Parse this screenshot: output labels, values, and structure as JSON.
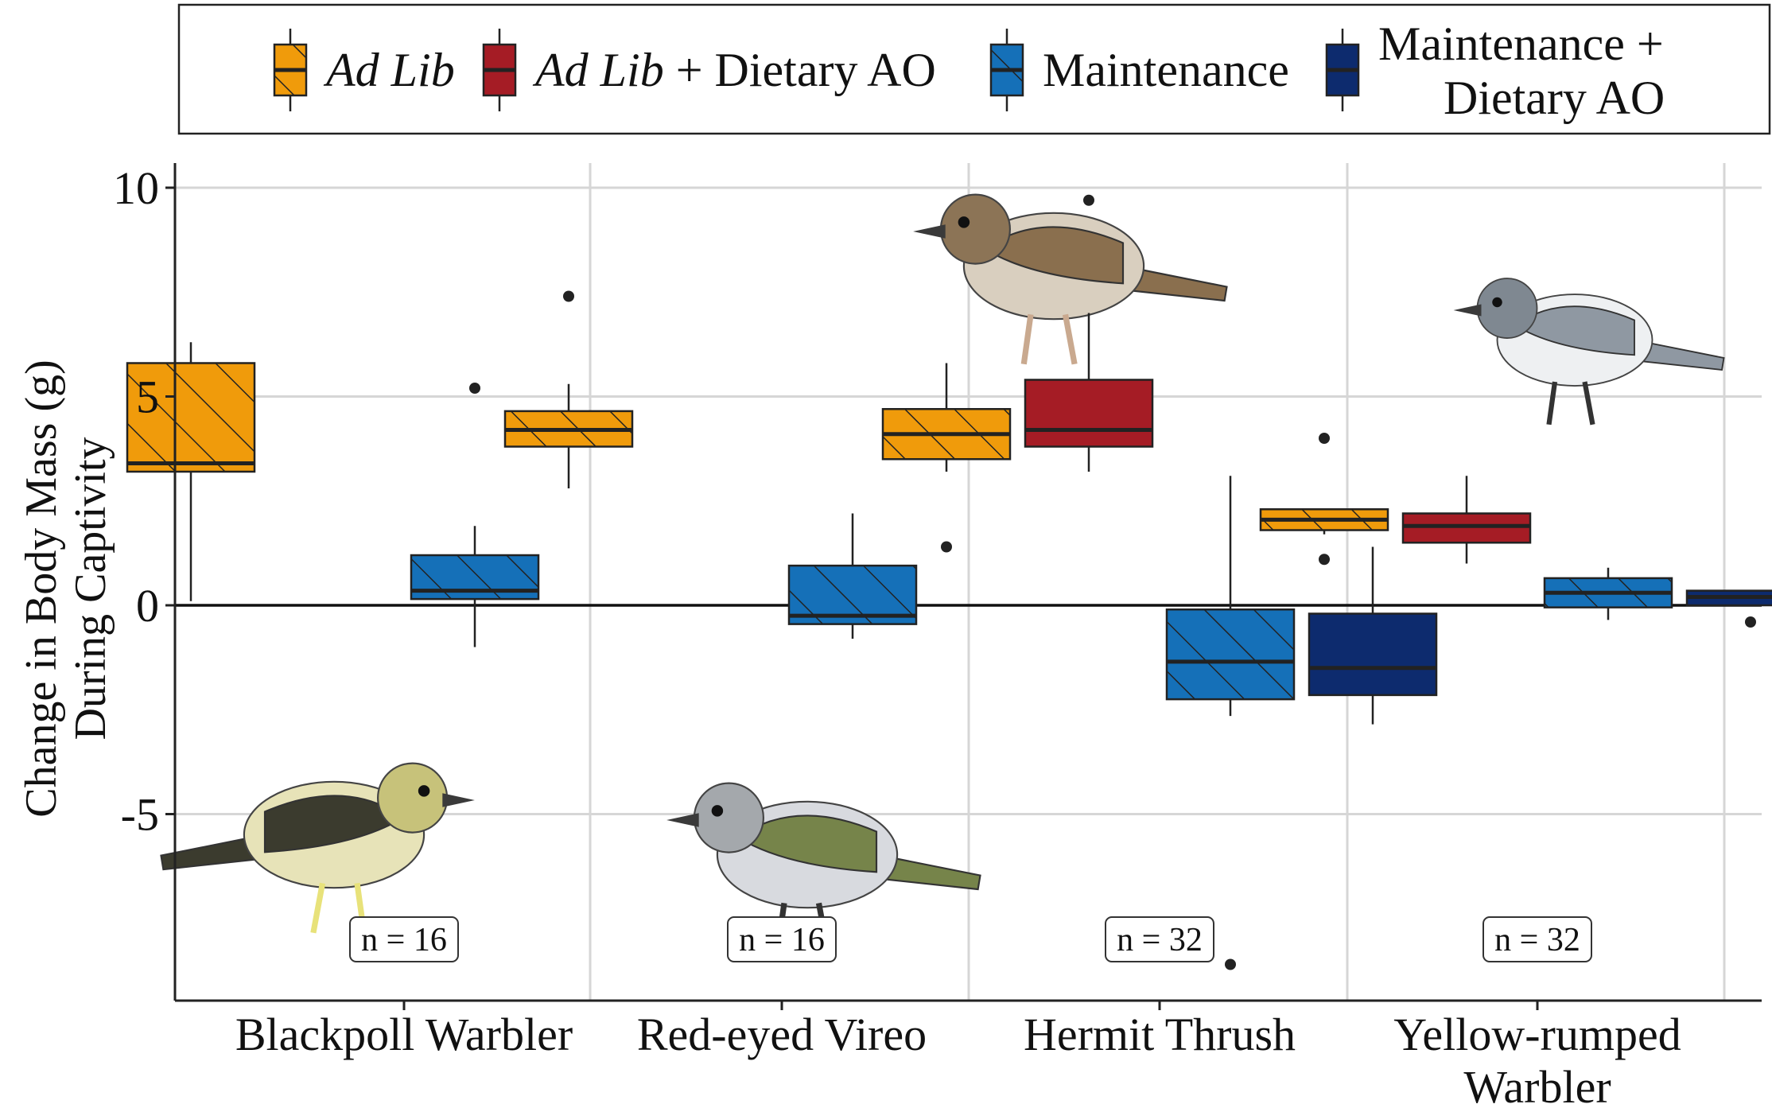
{
  "chart_data": {
    "type": "boxplot",
    "ylabel_line1": "Change in Body Mass (g)",
    "ylabel_line2": "During Captivity",
    "ylim": [
      -9.5,
      10.5
    ],
    "yticks": [
      10,
      5,
      0,
      -5
    ],
    "ytick_labels": [
      "10",
      "5",
      "0",
      "-5"
    ],
    "categories": [
      {
        "label": "Blackpoll Warbler",
        "n_label": "n = 16"
      },
      {
        "label": "Red-eyed Vireo",
        "n_label": "n = 16"
      },
      {
        "label": "Hermit Thrush",
        "n_label": "n = 32"
      },
      {
        "label": "Yellow-rumped\nWarbler",
        "n_label": "n = 32"
      }
    ],
    "legend": [
      {
        "key": "adlib",
        "parts": [
          {
            "text": "Ad Lib",
            "italic": true
          }
        ],
        "color": "#F09B0B",
        "hatched": true
      },
      {
        "key": "adlib_ao",
        "parts": [
          {
            "text": "Ad Lib",
            "italic": true
          },
          {
            "text": " + Dietary AO",
            "italic": false
          }
        ],
        "color": "#A51C25",
        "hatched": false
      },
      {
        "key": "maint",
        "parts": [
          {
            "text": "Maintenance",
            "italic": false
          }
        ],
        "color": "#1570B8",
        "hatched": true
      },
      {
        "key": "maint_ao",
        "lines": [
          "Maintenance +",
          "Dietary AO"
        ],
        "color": "#0D2B6E",
        "hatched": false
      }
    ],
    "series": [
      {
        "category": 0,
        "group": "adlib",
        "min": 0.1,
        "q1": 3.2,
        "median": 3.4,
        "q3": 5.8,
        "max": 6.3,
        "outliers": []
      },
      {
        "category": 0,
        "group": "maint",
        "min": -1.0,
        "q1": 0.15,
        "median": 0.35,
        "q3": 1.2,
        "max": 1.9,
        "outliers": [
          5.2
        ]
      },
      {
        "category": 1,
        "group": "adlib",
        "min": 2.8,
        "q1": 3.8,
        "median": 4.2,
        "q3": 4.65,
        "max": 5.3,
        "outliers": [
          7.4
        ]
      },
      {
        "category": 1,
        "group": "maint",
        "min": -0.8,
        "q1": -0.45,
        "median": -0.25,
        "q3": 0.95,
        "max": 2.2,
        "outliers": []
      },
      {
        "category": 2,
        "group": "adlib",
        "min": 3.2,
        "q1": 3.5,
        "median": 4.1,
        "q3": 4.7,
        "max": 5.8,
        "outliers": [
          1.4
        ]
      },
      {
        "category": 2,
        "group": "adlib_ao",
        "min": 3.2,
        "q1": 3.8,
        "median": 4.2,
        "q3": 5.4,
        "max": 7.0,
        "outliers": [
          9.7
        ]
      },
      {
        "category": 2,
        "group": "maint",
        "min": -2.65,
        "q1": -2.25,
        "median": -1.35,
        "q3": -0.1,
        "max": 3.1,
        "outliers": [
          -8.6
        ]
      },
      {
        "category": 2,
        "group": "maint_ao",
        "min": -2.85,
        "q1": -2.15,
        "median": -1.5,
        "q3": -0.2,
        "max": 1.4,
        "outliers": []
      },
      {
        "category": 3,
        "group": "adlib",
        "min": 1.7,
        "q1": 1.8,
        "median": 2.05,
        "q3": 2.3,
        "max": 2.3,
        "outliers": [
          4.0,
          1.1
        ]
      },
      {
        "category": 3,
        "group": "adlib_ao",
        "min": 1.0,
        "q1": 1.5,
        "median": 1.9,
        "q3": 2.2,
        "max": 3.1,
        "outliers": []
      },
      {
        "category": 3,
        "group": "maint",
        "min": -0.35,
        "q1": -0.05,
        "median": 0.3,
        "q3": 0.65,
        "max": 0.9,
        "outliers": []
      },
      {
        "category": 3,
        "group": "maint_ao",
        "min": 0.0,
        "q1": 0.0,
        "median": 0.2,
        "q3": 0.35,
        "max": 0.35,
        "outliers": [
          -0.4
        ]
      }
    ],
    "illustrations": [
      {
        "category": 0,
        "name": "blackpoll-warbler-illustration"
      },
      {
        "category": 1,
        "name": "red-eyed-vireo-illustration"
      },
      {
        "category": 2,
        "name": "hermit-thrush-illustration"
      },
      {
        "category": 3,
        "name": "yellow-rumped-warbler-illustration"
      }
    ]
  }
}
